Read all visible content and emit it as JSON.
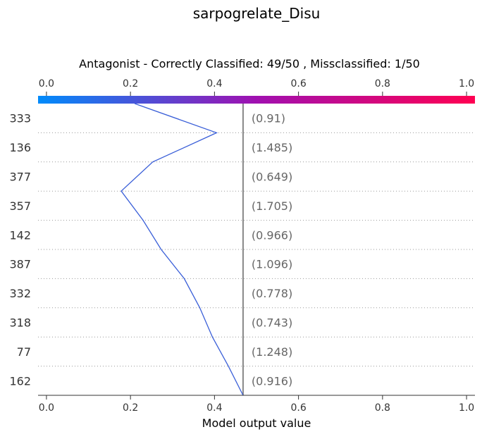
{
  "chart_data": {
    "type": "line",
    "suptitle": "sarpogrelate_Disu",
    "title": "Antagonist - Correctly Classified: 49/50 , Missclassified: 1/50",
    "xlabel": "Model output value",
    "xlim": [
      -0.02,
      1.02
    ],
    "xticks": [
      0.0,
      0.2,
      0.4,
      0.6,
      0.8,
      1.0
    ],
    "xtick_labels": [
      "0.0",
      "0.2",
      "0.4",
      "0.6",
      "0.8",
      "1.0"
    ],
    "base_value": 0.468,
    "colorbar": {
      "from": "#008bfb",
      "mid": "#a010b0",
      "to": "#ff0052"
    },
    "line_color": "#3a5fd8",
    "features": [
      {
        "name": "333",
        "value_label": "(0.91)"
      },
      {
        "name": "136",
        "value_label": "(1.485)"
      },
      {
        "name": "377",
        "value_label": "(0.649)"
      },
      {
        "name": "357",
        "value_label": "(1.705)"
      },
      {
        "name": "142",
        "value_label": "(0.966)"
      },
      {
        "name": "387",
        "value_label": "(1.096)"
      },
      {
        "name": "332",
        "value_label": "(0.778)"
      },
      {
        "name": "318",
        "value_label": "(0.743)"
      },
      {
        "name": "77",
        "value_label": "(1.248)"
      },
      {
        "name": "162",
        "value_label": "(0.916)"
      }
    ],
    "path_x": [
      0.21,
      0.405,
      0.253,
      0.178,
      0.23,
      0.273,
      0.328,
      0.365,
      0.395,
      0.433,
      0.468
    ],
    "grid": "dotted horizontal"
  }
}
